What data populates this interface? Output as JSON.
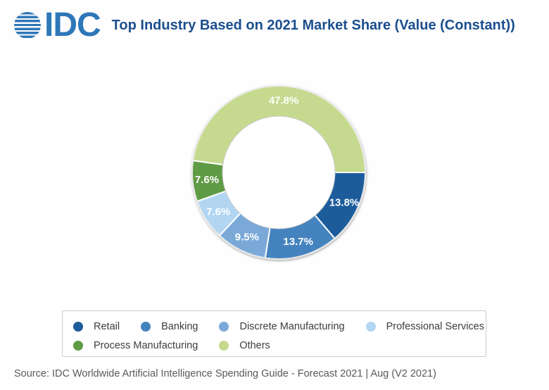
{
  "header": {
    "logo_text": "IDC",
    "title": "Top Industry Based on 2021 Market Share (Value (Constant))"
  },
  "chart_data": {
    "type": "pie",
    "subtype": "donut",
    "title": "Top Industry Based on 2021 Market Share (Value (Constant))",
    "start_angle_deg": 0,
    "direction": "clockwise",
    "categories": [
      "Retail",
      "Banking",
      "Discrete Manufacturing",
      "Professional Services",
      "Process Manufacturing",
      "Others"
    ],
    "values": [
      13.8,
      13.7,
      9.5,
      7.6,
      7.6,
      47.8
    ],
    "data_labels": [
      "13.8%",
      "13.7%",
      "9.5%",
      "7.6%",
      "7.6%",
      "47.8%"
    ],
    "colors": [
      "#1e5c9b",
      "#4583bf",
      "#7aa9d8",
      "#b2d6f2",
      "#5f9b44",
      "#c5da8e"
    ],
    "data_label_color": "#ffffff",
    "inner_radius_ratio": 0.65,
    "legend_position": "bottom"
  },
  "legend": {
    "rows": [
      [
        {
          "label": "Retail",
          "color": "#1e5c9b"
        },
        {
          "label": "Banking",
          "color": "#4583bf"
        },
        {
          "label": "Discrete Manufacturing",
          "color": "#7aa9d8"
        },
        {
          "label": "Professional Services",
          "color": "#b2d6f2"
        }
      ],
      [
        {
          "label": "Process Manufacturing",
          "color": "#5f9b44"
        },
        {
          "label": "Others",
          "color": "#c5da8e"
        }
      ]
    ]
  },
  "source": "Source: IDC Worldwide Artificial Intelligence Spending Guide - Forecast 2021 | Aug (V2 2021)"
}
